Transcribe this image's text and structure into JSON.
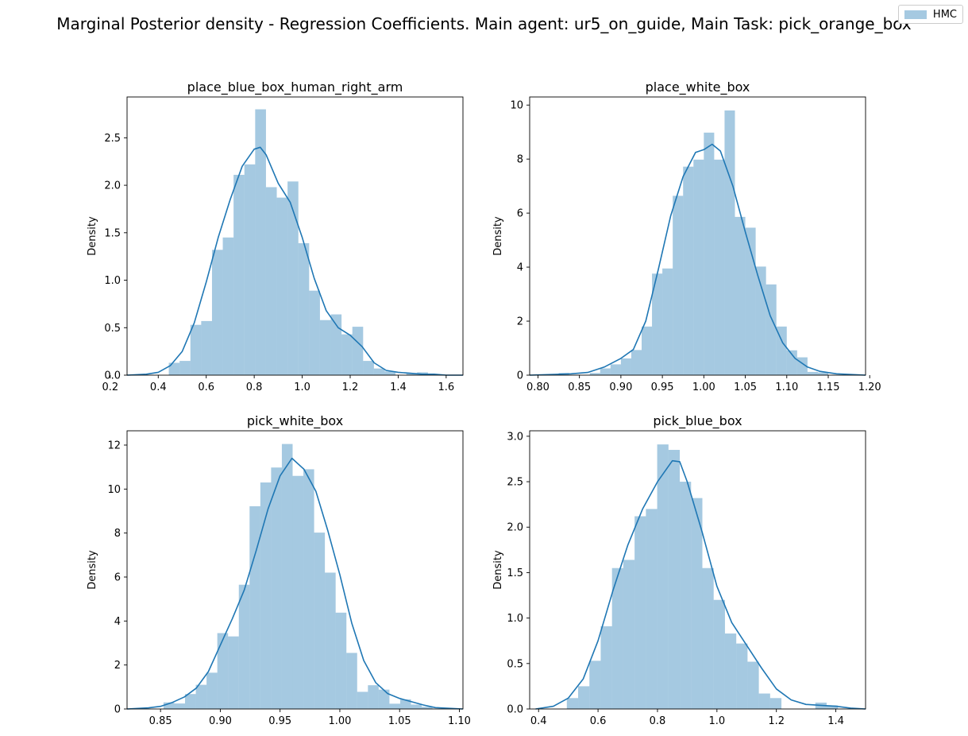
{
  "suptitle": "Marginal Posterior density - Regression Coefficients. Main agent: ur5_on_guide, Main Task: pick_orange_box",
  "legend": {
    "label": "HMC",
    "location": "top-right"
  },
  "colors": {
    "bar": "#1f77b4",
    "line": "#1f77b4"
  },
  "chart_data": [
    {
      "type": "bar",
      "title": "place_blue_box_human_right_arm",
      "ylabel": "Density",
      "xlim": [
        0.27,
        1.67
      ],
      "ylim": [
        0,
        2.93
      ],
      "xticks": [
        0.2,
        0.4,
        0.6,
        0.8,
        1.0,
        1.2,
        1.4,
        1.6
      ],
      "xtick_labels": [
        "0.2",
        "0.4",
        "0.6",
        "0.8",
        "1.0",
        "1.2",
        "1.4",
        "1.6"
      ],
      "yticks": [
        0,
        0.5,
        1.0,
        1.5,
        2.0,
        2.5
      ],
      "ytick_labels": [
        "0.0",
        "0.5",
        "1.0",
        "1.5",
        "2.0",
        "2.5"
      ],
      "bin_edges": [
        0.444,
        0.489,
        0.534,
        0.579,
        0.624,
        0.669,
        0.714,
        0.759,
        0.804,
        0.849,
        0.894,
        0.939,
        0.984,
        1.029,
        1.074,
        1.119,
        1.164,
        1.209,
        1.254,
        1.299,
        1.344,
        1.389,
        1.434,
        1.479,
        1.524
      ],
      "bin_values": [
        0.13,
        0.15,
        0.53,
        0.57,
        1.32,
        1.45,
        2.11,
        2.22,
        2.8,
        1.98,
        1.87,
        2.04,
        1.39,
        0.89,
        0.58,
        0.64,
        0.43,
        0.51,
        0.15,
        0.07,
        0.04,
        0.0,
        0.02,
        0.03
      ],
      "kde": {
        "x": [
          0.27,
          0.35,
          0.4,
          0.45,
          0.5,
          0.55,
          0.6,
          0.65,
          0.7,
          0.75,
          0.8,
          0.825,
          0.85,
          0.9,
          0.95,
          1.0,
          1.05,
          1.1,
          1.15,
          1.2,
          1.25,
          1.3,
          1.35,
          1.4,
          1.45,
          1.5,
          1.55,
          1.6,
          1.67
        ],
        "y": [
          0.0,
          0.01,
          0.03,
          0.1,
          0.25,
          0.55,
          0.98,
          1.45,
          1.85,
          2.2,
          2.38,
          2.4,
          2.32,
          2.02,
          1.82,
          1.45,
          1.02,
          0.68,
          0.5,
          0.42,
          0.3,
          0.13,
          0.05,
          0.03,
          0.02,
          0.01,
          0.01,
          0.0,
          0.0
        ]
      }
    },
    {
      "type": "bar",
      "title": "place_white_box",
      "ylabel": "Density",
      "xlim": [
        0.79,
        1.195
      ],
      "ylim": [
        0,
        10.3
      ],
      "xticks": [
        0.8,
        0.85,
        0.9,
        0.95,
        1.0,
        1.05,
        1.1,
        1.15,
        1.2
      ],
      "xtick_labels": [
        "0.80",
        "0.85",
        "0.90",
        "0.95",
        "1.00",
        "1.05",
        "1.10",
        "1.15",
        "1.20"
      ],
      "yticks": [
        0,
        2,
        4,
        6,
        8,
        10
      ],
      "ytick_labels": [
        "0",
        "2",
        "4",
        "6",
        "8",
        "10"
      ],
      "bin_edges": [
        0.825,
        0.8375,
        0.85,
        0.8625,
        0.875,
        0.8875,
        0.9,
        0.9125,
        0.925,
        0.9375,
        0.95,
        0.9625,
        0.975,
        0.9875,
        1.0,
        1.0125,
        1.025,
        1.0375,
        1.05,
        1.0625,
        1.075,
        1.0875,
        1.1,
        1.1125,
        1.125,
        1.1375,
        1.15
      ],
      "bin_values": [
        0.08,
        0.0,
        0.0,
        0.08,
        0.25,
        0.4,
        0.62,
        0.93,
        1.8,
        3.76,
        3.95,
        6.64,
        7.72,
        7.98,
        8.98,
        7.98,
        9.8,
        5.86,
        5.46,
        4.02,
        3.36,
        1.8,
        0.92,
        0.66,
        0.12,
        0.1
      ],
      "kde": {
        "x": [
          0.79,
          0.82,
          0.84,
          0.86,
          0.88,
          0.9,
          0.915,
          0.93,
          0.945,
          0.96,
          0.975,
          0.99,
          1.0,
          1.01,
          1.02,
          1.035,
          1.05,
          1.065,
          1.08,
          1.095,
          1.11,
          1.125,
          1.14,
          1.16,
          1.195
        ],
        "y": [
          0.0,
          0.03,
          0.05,
          0.1,
          0.3,
          0.62,
          0.95,
          2.0,
          3.9,
          5.9,
          7.35,
          8.25,
          8.35,
          8.55,
          8.3,
          7.0,
          5.3,
          3.7,
          2.2,
          1.2,
          0.62,
          0.3,
          0.14,
          0.05,
          0.0
        ]
      }
    },
    {
      "type": "bar",
      "title": "pick_white_box",
      "ylabel": "Density",
      "xlim": [
        0.822,
        1.103
      ],
      "ylim": [
        0,
        12.65
      ],
      "xticks": [
        0.85,
        0.9,
        0.95,
        1.0,
        1.05,
        1.1
      ],
      "xtick_labels": [
        "0.85",
        "0.90",
        "0.95",
        "1.00",
        "1.05",
        "1.10"
      ],
      "yticks": [
        0,
        2,
        4,
        6,
        8,
        10,
        12
      ],
      "ytick_labels": [
        "0",
        "2",
        "4",
        "6",
        "8",
        "10",
        "12"
      ],
      "bin_edges": [
        0.8525,
        0.8615,
        0.8705,
        0.8795,
        0.8885,
        0.8975,
        0.9065,
        0.9155,
        0.9245,
        0.9335,
        0.9425,
        0.9515,
        0.9605,
        0.9695,
        0.9785,
        0.9875,
        0.9965,
        1.0055,
        1.0145,
        1.0235,
        1.0325,
        1.0415,
        1.0505,
        1.0595,
        1.0685,
        1.0775
      ],
      "bin_values": [
        0.3,
        0.25,
        0.68,
        1.1,
        1.65,
        3.45,
        3.3,
        5.65,
        9.22,
        10.3,
        10.98,
        12.05,
        10.6,
        10.9,
        8.02,
        6.2,
        4.38,
        2.55,
        0.78,
        1.08,
        0.88,
        0.24,
        0.44,
        0.2,
        0.1
      ],
      "kde": {
        "x": [
          0.822,
          0.84,
          0.85,
          0.86,
          0.87,
          0.88,
          0.89,
          0.9,
          0.91,
          0.92,
          0.93,
          0.94,
          0.95,
          0.96,
          0.97,
          0.98,
          0.99,
          1.0,
          1.01,
          1.02,
          1.03,
          1.04,
          1.05,
          1.06,
          1.07,
          1.08,
          1.103
        ],
        "y": [
          0.0,
          0.05,
          0.12,
          0.3,
          0.55,
          0.95,
          1.7,
          2.9,
          4.1,
          5.4,
          7.2,
          9.1,
          10.6,
          11.4,
          10.9,
          9.9,
          8.1,
          6.1,
          3.9,
          2.2,
          1.2,
          0.7,
          0.48,
          0.33,
          0.18,
          0.06,
          0.0
        ]
      }
    },
    {
      "type": "bar",
      "title": "pick_blue_box",
      "ylabel": "Density",
      "xlim": [
        0.37,
        1.5
      ],
      "ylim": [
        0,
        3.06
      ],
      "xticks": [
        0.4,
        0.6,
        0.8,
        1.0,
        1.2,
        1.4
      ],
      "xtick_labels": [
        "0.4",
        "0.6",
        "0.8",
        "1.0",
        "1.2",
        "1.4"
      ],
      "yticks": [
        0,
        0.5,
        1.0,
        1.5,
        2.0,
        2.5,
        3.0
      ],
      "ytick_labels": [
        "0.0",
        "0.5",
        "1.0",
        "1.5",
        "2.0",
        "2.5",
        "3.0"
      ],
      "bin_edges": [
        0.495,
        0.533,
        0.571,
        0.609,
        0.647,
        0.685,
        0.723,
        0.761,
        0.799,
        0.837,
        0.875,
        0.913,
        0.951,
        0.989,
        1.027,
        1.065,
        1.103,
        1.141,
        1.179,
        1.217,
        1.255,
        1.293,
        1.331,
        1.369,
        1.407
      ],
      "bin_values": [
        0.12,
        0.25,
        0.53,
        0.91,
        1.55,
        1.64,
        2.12,
        2.2,
        2.91,
        2.85,
        2.5,
        2.32,
        1.55,
        1.2,
        0.83,
        0.72,
        0.52,
        0.17,
        0.12,
        0.0,
        0.0,
        0.0,
        0.07,
        0.04
      ],
      "kde": {
        "x": [
          0.39,
          0.45,
          0.5,
          0.55,
          0.6,
          0.65,
          0.7,
          0.75,
          0.8,
          0.85,
          0.875,
          0.9,
          0.95,
          1.0,
          1.05,
          1.1,
          1.15,
          1.2,
          1.25,
          1.3,
          1.35,
          1.4,
          1.45,
          1.5
        ],
        "y": [
          0.0,
          0.03,
          0.12,
          0.33,
          0.75,
          1.3,
          1.8,
          2.2,
          2.5,
          2.73,
          2.72,
          2.5,
          1.95,
          1.35,
          0.95,
          0.7,
          0.45,
          0.22,
          0.1,
          0.05,
          0.04,
          0.03,
          0.01,
          0.0
        ]
      }
    }
  ]
}
